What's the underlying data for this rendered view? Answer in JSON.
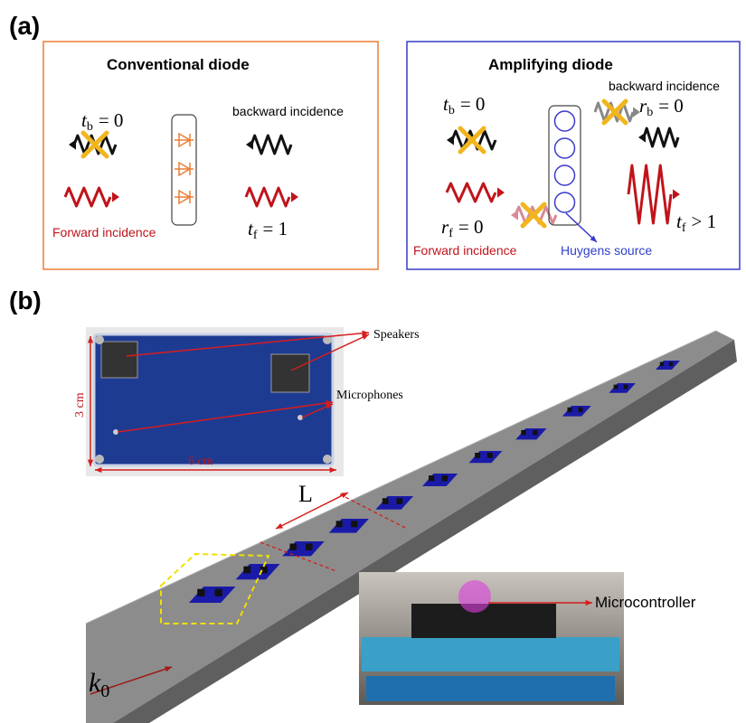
{
  "panel_a": {
    "label": "(a)",
    "conventional": {
      "title": "Conventional diode",
      "t_b": {
        "symbol": "t",
        "subscript": "b",
        "relation": "= 0"
      },
      "backward": "backward incidence",
      "forward": "Forward incidence",
      "t_f": {
        "symbol": "t",
        "subscript": "f",
        "relation": "= 1"
      }
    },
    "amplifying": {
      "title": "Amplifying diode",
      "t_b": {
        "symbol": "t",
        "subscript": "b",
        "relation": "= 0"
      },
      "backward": "backward incidence",
      "r_b": {
        "symbol": "r",
        "subscript": "b",
        "relation": "= 0"
      },
      "r_f": {
        "symbol": "r",
        "subscript": "f",
        "relation": "= 0"
      },
      "forward": "Forward incidence",
      "huygens": "Huygens source",
      "t_f": {
        "symbol": "t",
        "subscript": "f",
        "relation": "> 1"
      }
    }
  },
  "panel_b": {
    "label": "(b)",
    "speakers": "Speakers",
    "microphones": "Microphones",
    "height": "3 cm",
    "width": "6 cm",
    "spacing": "L",
    "wavenumber": {
      "symbol": "k",
      "subscript": "0"
    },
    "microcontroller": "Microcontroller"
  }
}
